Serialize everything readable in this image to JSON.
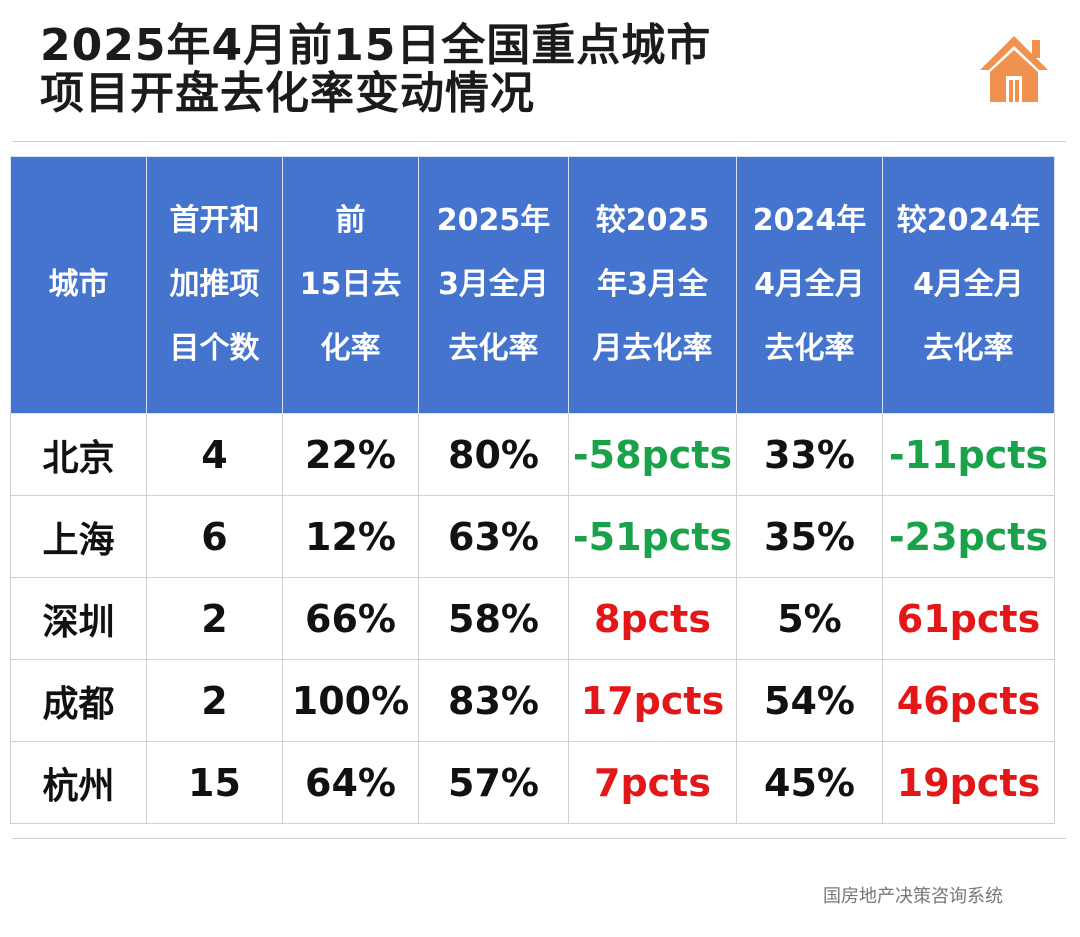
{
  "title": {
    "line1": "2025年4月前15日全国重点城市",
    "line2": "项目开盘去化率变动情况"
  },
  "logo_icon": "house-icon",
  "colors": {
    "header_bg": "#4574cf",
    "negative": "#1aa24b",
    "positive": "#e31717",
    "logo": "#f0924d"
  },
  "source": "国房地产决策咨询系统",
  "chart_data": {
    "type": "table",
    "columns": [
      "城市",
      "首开和加推项目个数",
      "前15日去化率",
      "2025年3月全月去化率",
      "较2025年3月全月去化率",
      "2024年4月全月去化率",
      "较2024年4月全月去化率"
    ],
    "header_lines": [
      [
        "城市"
      ],
      [
        "首开和",
        "加推项",
        "目个数"
      ],
      [
        "前",
        "15日去",
        "化率"
      ],
      [
        "2025年",
        "3月全月",
        "去化率"
      ],
      [
        "较2025",
        "年3月全",
        "月去化率"
      ],
      [
        "2024年",
        "4月全月",
        "去化率"
      ],
      [
        "较2024年",
        "4月全月",
        "去化率"
      ]
    ],
    "rows": [
      {
        "city": "北京",
        "projects": "4",
        "first15": "22%",
        "mar2025": "80%",
        "vs_mar2025": "-58pcts",
        "apr2024": "33%",
        "vs_apr2024": "-11pcts"
      },
      {
        "city": "上海",
        "projects": "6",
        "first15": "12%",
        "mar2025": "63%",
        "vs_mar2025": "-51pcts",
        "apr2024": "35%",
        "vs_apr2024": "-23pcts"
      },
      {
        "city": "深圳",
        "projects": "2",
        "first15": "66%",
        "mar2025": "58%",
        "vs_mar2025": "8pcts",
        "apr2024": "5%",
        "vs_apr2024": "61pcts"
      },
      {
        "city": "成都",
        "projects": "2",
        "first15": "100%",
        "mar2025": "83%",
        "vs_mar2025": "17pcts",
        "apr2024": "54%",
        "vs_apr2024": "46pcts"
      },
      {
        "city": "杭州",
        "projects": "15",
        "first15": "64%",
        "mar2025": "57%",
        "vs_mar2025": "7pcts",
        "apr2024": "45%",
        "vs_apr2024": "19pcts"
      }
    ]
  }
}
